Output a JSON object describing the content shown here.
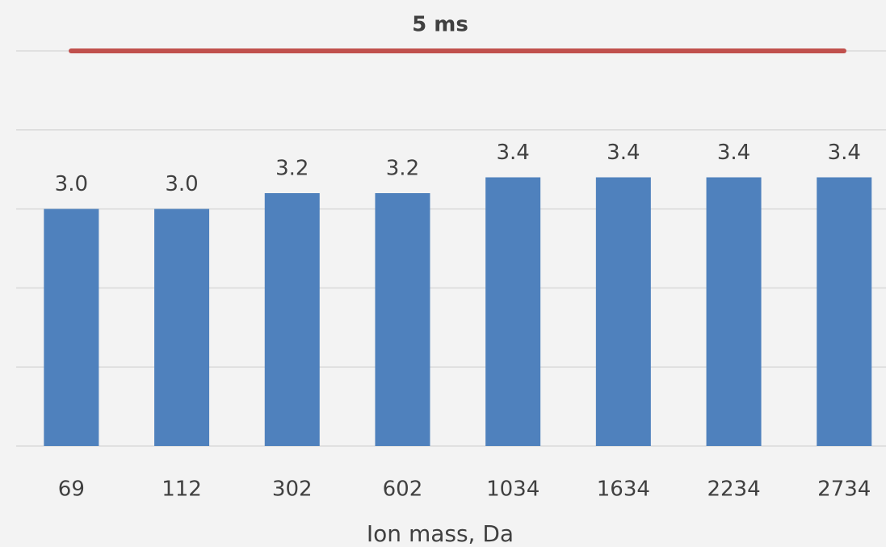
{
  "chart_data": {
    "type": "bar",
    "x_label": "Ion mass, Da",
    "categories": [
      "69",
      "112",
      "302",
      "602",
      "1034",
      "1634",
      "2234",
      "2734"
    ],
    "values": [
      3.0,
      3.0,
      3.2,
      3.2,
      3.4,
      3.4,
      3.4,
      3.4
    ],
    "value_labels": [
      "3.0",
      "3.0",
      "3.2",
      "3.2",
      "3.4",
      "3.4",
      "3.4",
      "3.4"
    ],
    "color": "#4f81bd",
    "ylim": [
      0,
      5
    ],
    "yticks": [
      0,
      1,
      2,
      3,
      4,
      5
    ],
    "grid": true,
    "reference_line": {
      "value": 5,
      "label": "5 ms",
      "color": "#c0504d"
    }
  }
}
